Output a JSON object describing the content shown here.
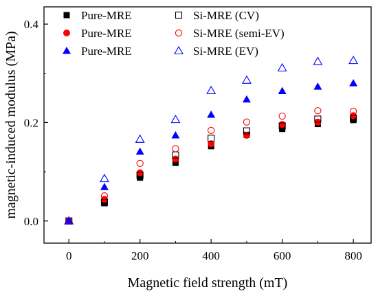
{
  "chart_data": {
    "type": "scatter",
    "xlabel": "Magnetic field strength (mT)",
    "ylabel": "magnetic-induced modulus (MPa)",
    "xlim": [
      -70,
      850
    ],
    "ylim": [
      -0.045,
      0.435
    ],
    "x_ticks": [
      0,
      200,
      400,
      600,
      800
    ],
    "x_tick_labels": [
      "0",
      "200",
      "400",
      "600",
      "800"
    ],
    "y_ticks": [
      0.0,
      0.2,
      0.4
    ],
    "y_tick_labels": [
      "0.0",
      "0.2",
      "0.4"
    ],
    "grid": false,
    "legend_placement": "top-left",
    "x": [
      0,
      100,
      200,
      300,
      400,
      500,
      600,
      700,
      800
    ],
    "series": [
      {
        "name": "Pure-MRE",
        "marker": "square",
        "filled": true,
        "color": "#000000",
        "values": [
          0.0,
          0.036,
          0.088,
          0.118,
          0.152,
          0.175,
          0.187,
          0.197,
          0.205
        ]
      },
      {
        "name": "Pure-MRE",
        "marker": "circle",
        "filled": true,
        "color": "#ff0000",
        "values": [
          0.0,
          0.044,
          0.098,
          0.126,
          0.157,
          0.174,
          0.196,
          0.201,
          0.214
        ]
      },
      {
        "name": "Pure-MRE",
        "marker": "triangle",
        "filled": true,
        "color": "#0000ff",
        "values": [
          0.0,
          0.069,
          0.141,
          0.174,
          0.216,
          0.247,
          0.264,
          0.273,
          0.28
        ]
      },
      {
        "name": "Si-MRE (CV)",
        "marker": "square",
        "filled": false,
        "color": "#000000",
        "values": [
          0.0,
          0.038,
          0.093,
          0.134,
          0.168,
          0.183,
          0.193,
          0.207,
          0.208
        ]
      },
      {
        "name": "Si-MRE (semi-EV)",
        "marker": "circle",
        "filled": false,
        "color": "#ff0000",
        "values": [
          0.0,
          0.051,
          0.117,
          0.147,
          0.184,
          0.201,
          0.213,
          0.224,
          0.223
        ]
      },
      {
        "name": "Si-MRE (EV)",
        "marker": "triangle",
        "filled": false,
        "color": "#0000ff",
        "values": [
          0.0,
          0.086,
          0.166,
          0.206,
          0.265,
          0.286,
          0.311,
          0.324,
          0.326
        ]
      }
    ]
  }
}
